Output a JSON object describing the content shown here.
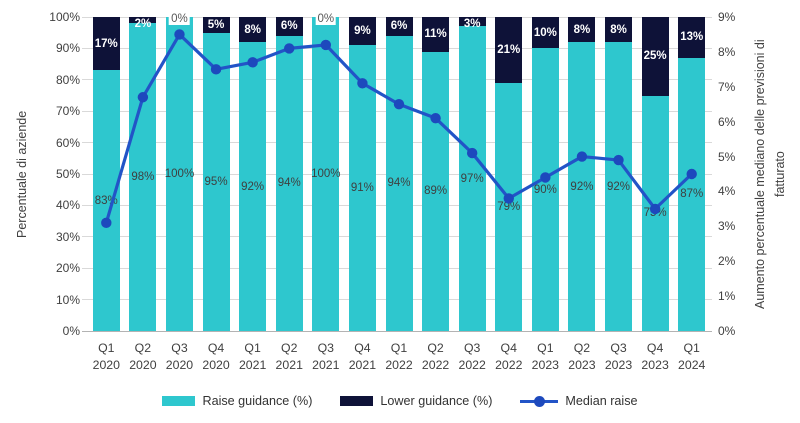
{
  "chart_data": {
    "type": "bar",
    "subtype": "stacked-columns-with-line-overlay",
    "grid": true,
    "categories": [
      {
        "quarter": "Q1",
        "year": "2020"
      },
      {
        "quarter": "Q2",
        "year": "2020"
      },
      {
        "quarter": "Q3",
        "year": "2020"
      },
      {
        "quarter": "Q4",
        "year": "2020"
      },
      {
        "quarter": "Q1",
        "year": "2021"
      },
      {
        "quarter": "Q2",
        "year": "2021"
      },
      {
        "quarter": "Q3",
        "year": "2021"
      },
      {
        "quarter": "Q4",
        "year": "2021"
      },
      {
        "quarter": "Q1",
        "year": "2022"
      },
      {
        "quarter": "Q2",
        "year": "2022"
      },
      {
        "quarter": "Q3",
        "year": "2022"
      },
      {
        "quarter": "Q4",
        "year": "2022"
      },
      {
        "quarter": "Q1",
        "year": "2023"
      },
      {
        "quarter": "Q2",
        "year": "2023"
      },
      {
        "quarter": "Q3",
        "year": "2023"
      },
      {
        "quarter": "Q4",
        "year": "2023"
      },
      {
        "quarter": "Q1",
        "year": "2024"
      }
    ],
    "series": [
      {
        "name": "Raise guidance (%)",
        "type": "bar",
        "axis": "left",
        "color": "#2ec7ce",
        "values": [
          83,
          98,
          100,
          95,
          92,
          94,
          100,
          91,
          94,
          89,
          97,
          79,
          90,
          92,
          92,
          75,
          87
        ]
      },
      {
        "name": "Lower guidance (%)",
        "type": "bar",
        "axis": "left",
        "color": "#0e1238",
        "values": [
          17,
          2,
          0,
          5,
          8,
          6,
          0,
          9,
          6,
          11,
          3,
          21,
          10,
          8,
          8,
          25,
          13
        ]
      },
      {
        "name": "Median raise",
        "type": "line",
        "axis": "right",
        "color": "#2254c7",
        "marker_color": "#1d49bd",
        "values": [
          3.1,
          6.7,
          8.5,
          7.5,
          7.7,
          8.1,
          8.2,
          7.1,
          6.5,
          6.1,
          5.1,
          3.8,
          4.4,
          5.0,
          4.9,
          3.5,
          4.5
        ]
      }
    ],
    "axes": {
      "left": {
        "title": "Percentuale di aziende",
        "min": 0,
        "max": 100,
        "step": 10,
        "tick_suffix": "%"
      },
      "right": {
        "title": "Aumento percentuale mediano delle previsioni di fatturato",
        "title_wrapped": "Aumento percentuale mediano delle previsioni di\nfatturato",
        "min": 0,
        "max": 9,
        "step": 1,
        "tick_suffix": "%"
      }
    },
    "legend": {
      "position": "bottom"
    },
    "style": {
      "gridline_color": "#d9d9d9",
      "axis_line_color": "#b3b3b3",
      "text_color": "#404040",
      "zero_label_color": "#595959"
    }
  }
}
